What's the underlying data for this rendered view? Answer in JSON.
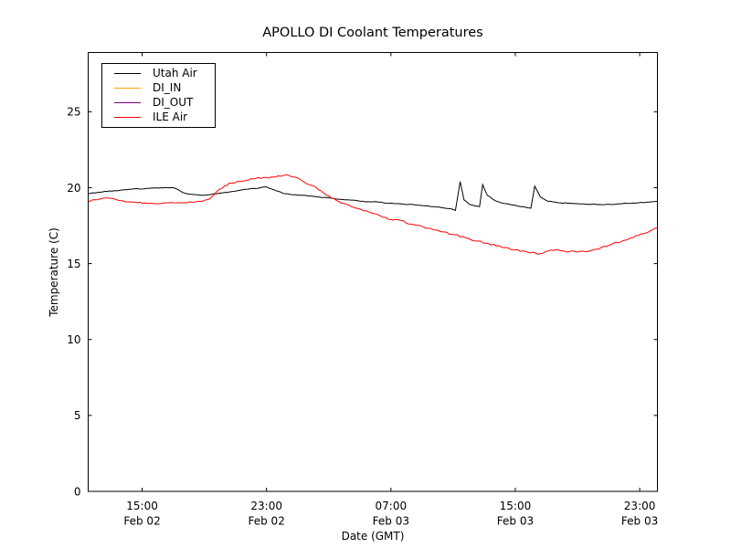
{
  "title": "APOLLO DI Coolant Temperatures",
  "axes": {
    "x_label": "Date (GMT)",
    "y_label": "Temperature (C)"
  },
  "legend": {
    "position": "upper-left",
    "items": [
      {
        "label": "Utah Air",
        "color": "#000000"
      },
      {
        "label": "DI_IN",
        "color": "#ffa500"
      },
      {
        "label": "DI_OUT",
        "color": "#800080"
      },
      {
        "label": "ILE Air",
        "color": "#ff0000"
      }
    ]
  },
  "chart_data": {
    "type": "line",
    "title": "APOLLO DI Coolant Temperatures",
    "xlabel": "Date (GMT)",
    "ylabel": "Temperature (C)",
    "grid": false,
    "legend_position": "upper left",
    "x_unit": "hours since Feb 02 00:00 GMT",
    "xlim": [
      11.53,
      48.14
    ],
    "ylim": [
      0,
      28.9
    ],
    "y_ticks": [
      0,
      5,
      10,
      15,
      20,
      25
    ],
    "x_ticks": [
      {
        "t": 15,
        "time": "15:00",
        "date": "Feb 02"
      },
      {
        "t": 23,
        "time": "23:00",
        "date": "Feb 02"
      },
      {
        "t": 31,
        "time": "07:00",
        "date": "Feb 03"
      },
      {
        "t": 39,
        "time": "15:00",
        "date": "Feb 03"
      },
      {
        "t": 47,
        "time": "23:00",
        "date": "Feb 03"
      }
    ],
    "series": [
      {
        "name": "Utah Air",
        "color": "#000000",
        "points": [
          [
            11.53,
            19.6
          ],
          [
            12.3,
            19.7
          ],
          [
            13.2,
            19.8
          ],
          [
            14.2,
            19.9
          ],
          [
            15.3,
            19.95
          ],
          [
            16.2,
            20.0
          ],
          [
            17.0,
            20.0
          ],
          [
            17.7,
            19.65
          ],
          [
            18.3,
            19.55
          ],
          [
            18.9,
            19.5
          ],
          [
            19.8,
            19.6
          ],
          [
            20.8,
            19.75
          ],
          [
            21.8,
            19.9
          ],
          [
            22.6,
            20.0
          ],
          [
            23.0,
            20.05
          ],
          [
            23.6,
            19.8
          ],
          [
            24.2,
            19.6
          ],
          [
            25.2,
            19.5
          ],
          [
            26.2,
            19.4
          ],
          [
            27.2,
            19.3
          ],
          [
            28.2,
            19.2
          ],
          [
            29.2,
            19.1
          ],
          [
            30.2,
            19.05
          ],
          [
            31.2,
            18.95
          ],
          [
            32.2,
            18.9
          ],
          [
            33.2,
            18.8
          ],
          [
            34.2,
            18.7
          ],
          [
            34.9,
            18.6
          ],
          [
            35.15,
            18.5
          ],
          [
            35.45,
            20.4
          ],
          [
            35.7,
            19.2
          ],
          [
            36.05,
            18.9
          ],
          [
            36.4,
            18.8
          ],
          [
            36.7,
            18.75
          ],
          [
            36.9,
            20.2
          ],
          [
            37.2,
            19.5
          ],
          [
            37.7,
            19.15
          ],
          [
            38.3,
            18.95
          ],
          [
            38.9,
            18.85
          ],
          [
            39.5,
            18.75
          ],
          [
            40.0,
            18.65
          ],
          [
            40.25,
            20.1
          ],
          [
            40.6,
            19.4
          ],
          [
            41.1,
            19.1
          ],
          [
            41.9,
            19.0
          ],
          [
            42.9,
            18.95
          ],
          [
            43.9,
            18.9
          ],
          [
            44.9,
            18.9
          ],
          [
            45.9,
            18.95
          ],
          [
            46.9,
            19.0
          ],
          [
            47.6,
            19.05
          ],
          [
            48.14,
            19.1
          ]
        ]
      },
      {
        "name": "DI_IN",
        "color": "#ffa500",
        "points": []
      },
      {
        "name": "DI_OUT",
        "color": "#800080",
        "points": []
      },
      {
        "name": "ILE Air",
        "color": "#ff0000",
        "points": [
          [
            11.53,
            19.1
          ],
          [
            12.3,
            19.25
          ],
          [
            12.9,
            19.3
          ],
          [
            13.6,
            19.15
          ],
          [
            14.4,
            19.05
          ],
          [
            15.2,
            19.0
          ],
          [
            16.2,
            18.95
          ],
          [
            17.2,
            19.0
          ],
          [
            18.2,
            19.05
          ],
          [
            18.8,
            19.1
          ],
          [
            19.4,
            19.3
          ],
          [
            19.8,
            19.75
          ],
          [
            20.3,
            20.1
          ],
          [
            20.6,
            20.3
          ],
          [
            21.3,
            20.4
          ],
          [
            22.3,
            20.6
          ],
          [
            23.3,
            20.7
          ],
          [
            23.9,
            20.75
          ],
          [
            24.3,
            20.85
          ],
          [
            24.8,
            20.7
          ],
          [
            25.3,
            20.45
          ],
          [
            25.9,
            20.15
          ],
          [
            26.5,
            19.8
          ],
          [
            27.0,
            19.45
          ],
          [
            27.5,
            19.15
          ],
          [
            28.3,
            18.85
          ],
          [
            29.1,
            18.55
          ],
          [
            29.9,
            18.3
          ],
          [
            30.5,
            18.05
          ],
          [
            31.0,
            17.9
          ],
          [
            31.6,
            17.85
          ],
          [
            32.3,
            17.6
          ],
          [
            33.1,
            17.4
          ],
          [
            34.1,
            17.15
          ],
          [
            35.1,
            16.9
          ],
          [
            36.1,
            16.6
          ],
          [
            37.1,
            16.35
          ],
          [
            38.1,
            16.1
          ],
          [
            39.0,
            15.9
          ],
          [
            39.8,
            15.75
          ],
          [
            40.6,
            15.65
          ],
          [
            41.3,
            15.9
          ],
          [
            41.9,
            15.85
          ],
          [
            42.5,
            15.8
          ],
          [
            43.4,
            15.8
          ],
          [
            44.2,
            15.95
          ],
          [
            45.0,
            16.2
          ],
          [
            45.9,
            16.5
          ],
          [
            46.9,
            16.85
          ],
          [
            47.5,
            17.05
          ],
          [
            48.14,
            17.35
          ]
        ]
      }
    ]
  }
}
